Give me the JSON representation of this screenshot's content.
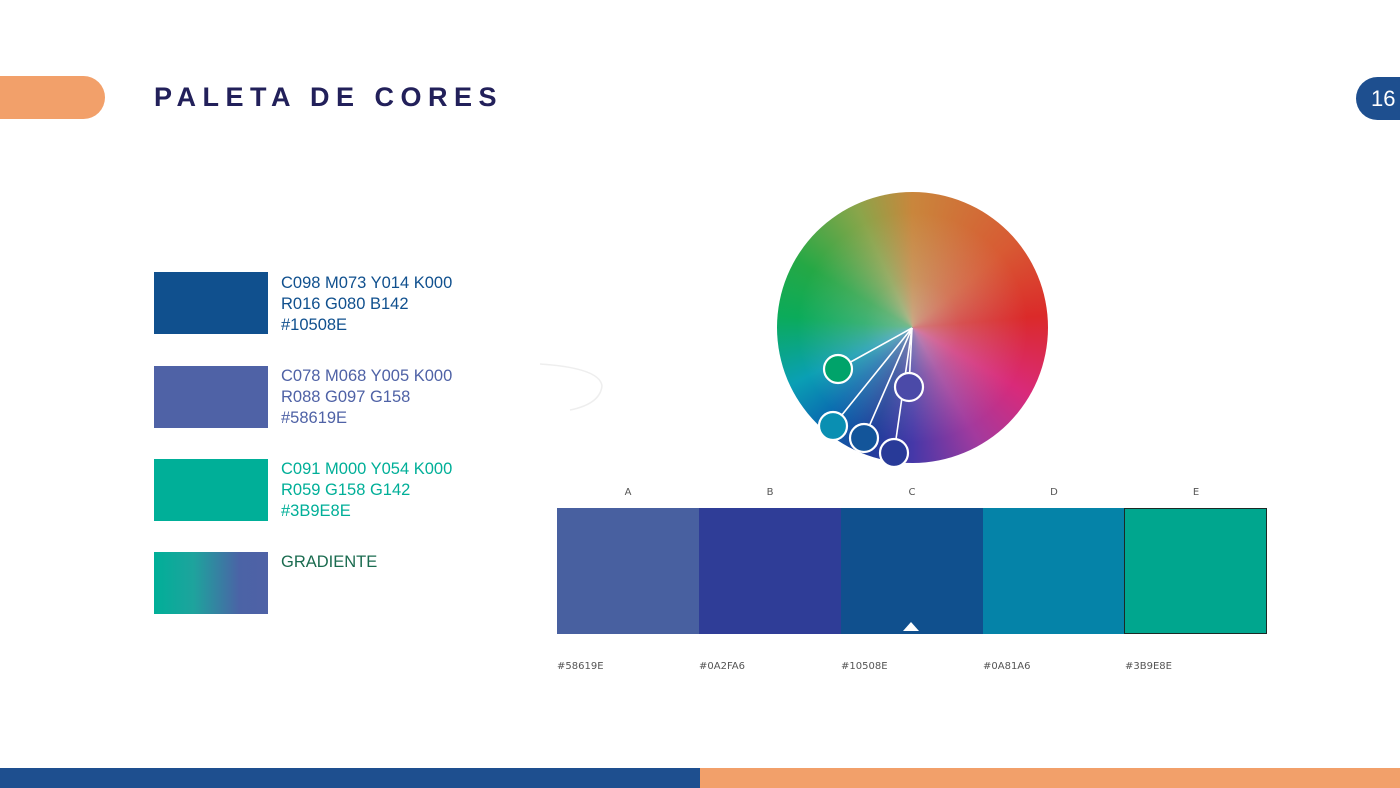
{
  "header": {
    "title": "PALETA DE CORES",
    "page_number": "16"
  },
  "colors": {
    "brand_blue": "#1E4F8F",
    "brand_orange": "#F2A06A",
    "title_navy": "#22205a"
  },
  "palette": [
    {
      "swatch": "#10508E",
      "text_color": "#10508E",
      "lines": [
        "C098 M073 Y014 K000",
        "R016 G080 B142",
        "#10508E"
      ]
    },
    {
      "swatch": "#4F62A6",
      "text_color": "#4F62A6",
      "lines": [
        "C078 M068 Y005 K000",
        "R088 G097 G158",
        "#58619E"
      ]
    },
    {
      "swatch": "#00AF98",
      "text_color": "#00AF98",
      "lines": [
        "C091 M000 Y054 K000",
        "R059 G158 G142",
        "#3B9E8E"
      ]
    },
    {
      "swatch": "gradient",
      "text_color": "#1a6b4f",
      "lines": [
        "GRADIENTE"
      ]
    }
  ],
  "harmony": [
    {
      "label": "A",
      "color": "#4860A0",
      "hex": "#58619E"
    },
    {
      "label": "B",
      "color": "#2F3D97",
      "hex": "#0A2FA6"
    },
    {
      "label": "C",
      "color": "#10508E",
      "hex": "#10508E"
    },
    {
      "label": "D",
      "color": "#0583A8",
      "hex": "#0A81A6"
    },
    {
      "label": "E",
      "color": "#00A68E",
      "hex": "#3B9E8E"
    }
  ]
}
